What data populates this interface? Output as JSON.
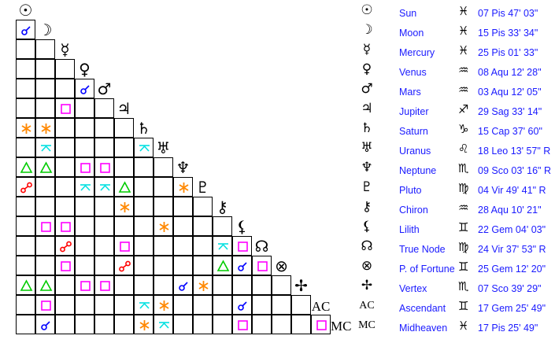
{
  "planets": [
    {
      "name": "Sun",
      "glyph": "☉",
      "sign_glyph": "♓",
      "position": "07 Pis 47' 03\""
    },
    {
      "name": "Moon",
      "glyph": "☽",
      "sign_glyph": "♓",
      "position": "15 Pis 33' 34\""
    },
    {
      "name": "Mercury",
      "glyph": "☿",
      "sign_glyph": "♓",
      "position": "25 Pis 01' 33\""
    },
    {
      "name": "Venus",
      "glyph": "♀",
      "sign_glyph": "♒",
      "position": "08 Aqu 12' 28\""
    },
    {
      "name": "Mars",
      "glyph": "♂",
      "sign_glyph": "♒",
      "position": "03 Aqu 12' 05\""
    },
    {
      "name": "Jupiter",
      "glyph": "♃",
      "sign_glyph": "♐",
      "position": "29 Sag 33' 14\""
    },
    {
      "name": "Saturn",
      "glyph": "♄",
      "sign_glyph": "♑",
      "position": "15 Cap 37' 60\""
    },
    {
      "name": "Uranus",
      "glyph": "♅",
      "sign_glyph": "♌",
      "position": "18 Leo 13' 57\" R"
    },
    {
      "name": "Neptune",
      "glyph": "♆",
      "sign_glyph": "♏",
      "position": "09 Sco 03' 16\" R"
    },
    {
      "name": "Pluto",
      "glyph": "♇",
      "sign_glyph": "♍",
      "position": "04 Vir 49' 41\" R"
    },
    {
      "name": "Chiron",
      "glyph": "⚷",
      "sign_glyph": "♒",
      "position": "28 Aqu 10' 21\""
    },
    {
      "name": "Lilith",
      "glyph": "⚸",
      "sign_glyph": "♊",
      "position": "22 Gem 04' 03\""
    },
    {
      "name": "True Node",
      "glyph": "☊",
      "sign_glyph": "♍",
      "position": "24 Vir 37' 53\" R"
    },
    {
      "name": "P. of Fortune",
      "glyph": "⊗",
      "sign_glyph": "♊",
      "position": "25 Gem 12' 20\""
    },
    {
      "name": "Vertex",
      "glyph": "✢",
      "sign_glyph": "♏",
      "position": "07 Sco 39' 29\""
    },
    {
      "name": "Ascendant",
      "glyph": "AC",
      "sign_glyph": "♊",
      "position": "17 Gem 25' 49\""
    },
    {
      "name": "Midheaven",
      "glyph": "MC",
      "sign_glyph": "♓",
      "position": "17 Pis 25' 49\""
    }
  ],
  "aspect_colors": {
    "conjunction": "#0000ff",
    "opposition": "#ff0000",
    "trine": "#00cc00",
    "square": "#ff00ff",
    "sextile": "#ff8800",
    "quincunx": "#00e0e0"
  },
  "aspects": [
    [
      "Moon",
      "Sun",
      "conjunction"
    ],
    [
      "Mars",
      "Venus",
      "conjunction"
    ],
    [
      "Jupiter",
      "Mercury",
      "square"
    ],
    [
      "Saturn",
      "Sun",
      "sextile"
    ],
    [
      "Saturn",
      "Moon",
      "sextile"
    ],
    [
      "Uranus",
      "Moon",
      "quincunx"
    ],
    [
      "Uranus",
      "Saturn",
      "quincunx"
    ],
    [
      "Neptune",
      "Sun",
      "trine"
    ],
    [
      "Neptune",
      "Moon",
      "trine"
    ],
    [
      "Neptune",
      "Venus",
      "square"
    ],
    [
      "Neptune",
      "Mars",
      "square"
    ],
    [
      "Pluto",
      "Sun",
      "opposition"
    ],
    [
      "Pluto",
      "Venus",
      "quincunx"
    ],
    [
      "Pluto",
      "Mars",
      "quincunx"
    ],
    [
      "Pluto",
      "Jupiter",
      "trine"
    ],
    [
      "Pluto",
      "Neptune",
      "sextile"
    ],
    [
      "Chiron",
      "Jupiter",
      "sextile"
    ],
    [
      "Lilith",
      "Moon",
      "square"
    ],
    [
      "Lilith",
      "Mercury",
      "square"
    ],
    [
      "Lilith",
      "Uranus",
      "sextile"
    ],
    [
      "True Node",
      "Mercury",
      "opposition"
    ],
    [
      "True Node",
      "Jupiter",
      "square"
    ],
    [
      "True Node",
      "Chiron",
      "quincunx"
    ],
    [
      "True Node",
      "Lilith",
      "square"
    ],
    [
      "P. of Fortune",
      "Mercury",
      "square"
    ],
    [
      "P. of Fortune",
      "Jupiter",
      "opposition"
    ],
    [
      "P. of Fortune",
      "Chiron",
      "trine"
    ],
    [
      "P. of Fortune",
      "Lilith",
      "conjunction"
    ],
    [
      "P. of Fortune",
      "True Node",
      "square"
    ],
    [
      "Vertex",
      "Sun",
      "trine"
    ],
    [
      "Vertex",
      "Moon",
      "trine"
    ],
    [
      "Vertex",
      "Venus",
      "square"
    ],
    [
      "Vertex",
      "Mars",
      "square"
    ],
    [
      "Vertex",
      "Neptune",
      "conjunction"
    ],
    [
      "Vertex",
      "Pluto",
      "sextile"
    ],
    [
      "Ascendant",
      "Moon",
      "square"
    ],
    [
      "Ascendant",
      "Saturn",
      "quincunx"
    ],
    [
      "Ascendant",
      "Uranus",
      "sextile"
    ],
    [
      "Ascendant",
      "Lilith",
      "conjunction"
    ],
    [
      "Midheaven",
      "Moon",
      "conjunction"
    ],
    [
      "Midheaven",
      "Saturn",
      "sextile"
    ],
    [
      "Midheaven",
      "Uranus",
      "quincunx"
    ],
    [
      "Midheaven",
      "Lilith",
      "square"
    ],
    [
      "Midheaven",
      "Ascendant",
      "square"
    ]
  ]
}
